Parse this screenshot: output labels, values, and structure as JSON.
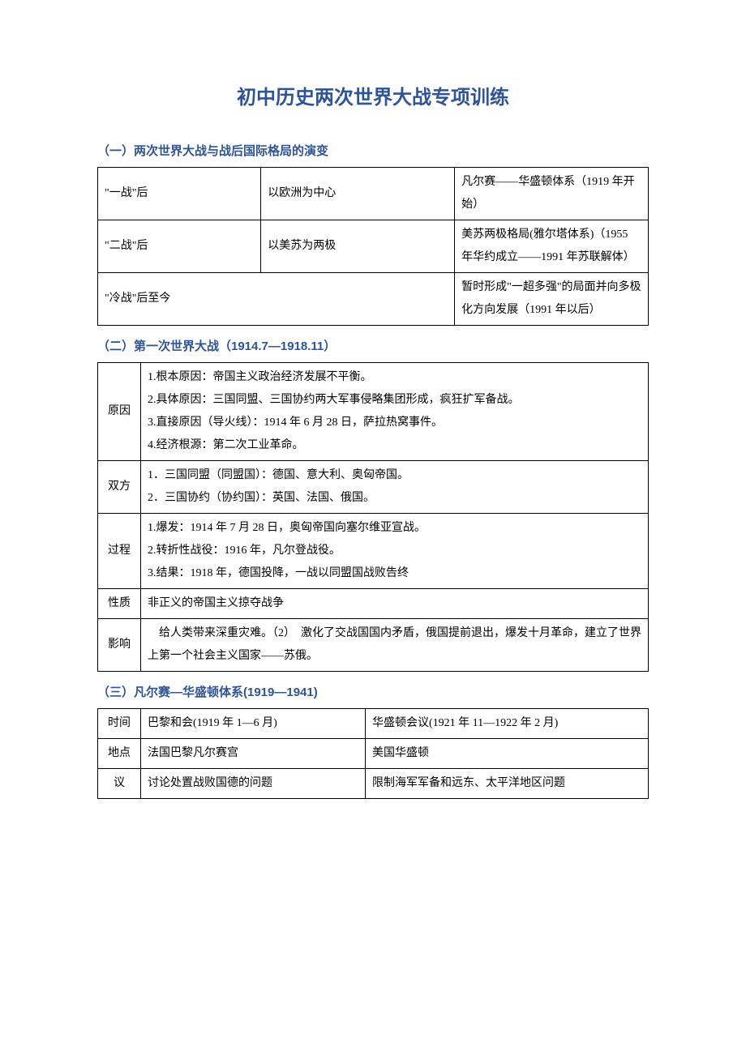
{
  "title": "初中历史两次世界大战专项训练",
  "section1": {
    "heading": "（一）两次世界大战与战后国际格局的演变",
    "rows": [
      {
        "c1": "\"一战\"后",
        "c2": "以欧洲为中心",
        "c3": "凡尔赛——华盛顿体系（1919 年开始）"
      },
      {
        "c1": "\"二战\"后",
        "c2": "以美苏为两极",
        "c3": "美苏两极格局(雅尔塔体系)（1955 年华约成立——1991 年苏联解体）"
      },
      {
        "c12": "\"冷战\"后至今",
        "c3": "暂时形成\"一超多强\"的局面并向多极化方向发展（1991 年以后）"
      }
    ]
  },
  "section2": {
    "heading": "（二）第一次世界大战（1914.7—1918.11）",
    "rows": [
      {
        "label": "原因",
        "text": "1.根本原因：帝国主义政治经济发展不平衡。\n2.具体原因：三国同盟、三国协约两大军事侵略集团形成，疯狂扩军备战。\n3.直接原因（导火线）：1914 年 6 月 28 日，萨拉热窝事件。\n4.经济根源：第二次工业革命。"
      },
      {
        "label": "双方",
        "text": "1．三国同盟（同盟国）：德国、意大利、奥匈帝国。\n2．三国协约（协约国）：英国、法国、俄国。"
      },
      {
        "label": "过程",
        "text": "1.爆发：1914 年 7 月 28 日，奥匈帝国向塞尔维亚宣战。\n2.转折性战役：1916 年，凡尔登战役。\n3.结果：1918 年，德国投降，一战以同盟国战败告终"
      },
      {
        "label": "性质",
        "text": "非正义的帝国主义掠夺战争"
      },
      {
        "label": "影响",
        "text": "　给人类带来深重灾难。（2）　激化了交战国国内矛盾，俄国提前退出，爆发十月革命，建立了世界上第一个社会主义国家——苏俄。"
      }
    ]
  },
  "section3": {
    "heading": "（三）凡尔赛—华盛顿体系(1919—1941)",
    "rows": [
      {
        "label": "时间",
        "c2": "巴黎和会(1919 年 1—6 月)",
        "c3": "华盛顿会议(1921 年 11—1922 年 2 月)"
      },
      {
        "label": "地点",
        "c2": "法国巴黎凡尔赛宫",
        "c3": "美国华盛顿"
      },
      {
        "label": "议",
        "c2": "讨论处置战败国德的问题",
        "c3": "限制海军军备和远东、太平洋地区问题"
      }
    ]
  },
  "colors": {
    "heading": "#2e5496",
    "text": "#000000",
    "border": "#000000",
    "background": "#ffffff"
  },
  "typography": {
    "title_fontsize": 24,
    "heading_fontsize": 15,
    "body_fontsize": 14,
    "body_lineheight": 2
  }
}
